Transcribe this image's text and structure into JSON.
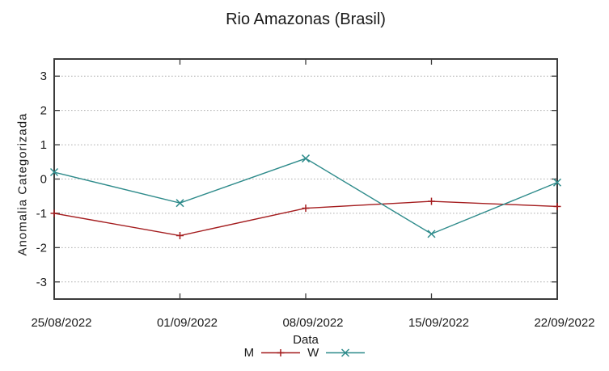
{
  "title": "Rio Amazonas (Brasil)",
  "chart_data": {
    "type": "line",
    "title": "Rio Amazonas (Brasil)",
    "xlabel": "Data",
    "ylabel": "Anomalia Categorizada",
    "categories": [
      "25/08/2022",
      "01/09/2022",
      "08/09/2022",
      "15/09/2022",
      "22/09/2022"
    ],
    "series": [
      {
        "name": "M",
        "marker": "plus",
        "color": "#a41c1e",
        "values": [
          -1.0,
          -1.65,
          -0.85,
          -0.65,
          -0.8
        ]
      },
      {
        "name": "W",
        "marker": "cross",
        "color": "#2e8b8b",
        "values": [
          0.2,
          -0.7,
          0.6,
          -1.6,
          -0.1
        ]
      }
    ],
    "ylim": [
      -3.5,
      3.5
    ],
    "yticks": [
      3,
      2,
      1,
      0,
      -1,
      -2,
      -3
    ],
    "grid": "horizontal-dotted",
    "legend_position": "below-plot"
  },
  "colors": {
    "background": "#ffffff",
    "axis": "#3c3c3c",
    "grid": "#b0b0b0",
    "text": "#1a1a1a"
  }
}
